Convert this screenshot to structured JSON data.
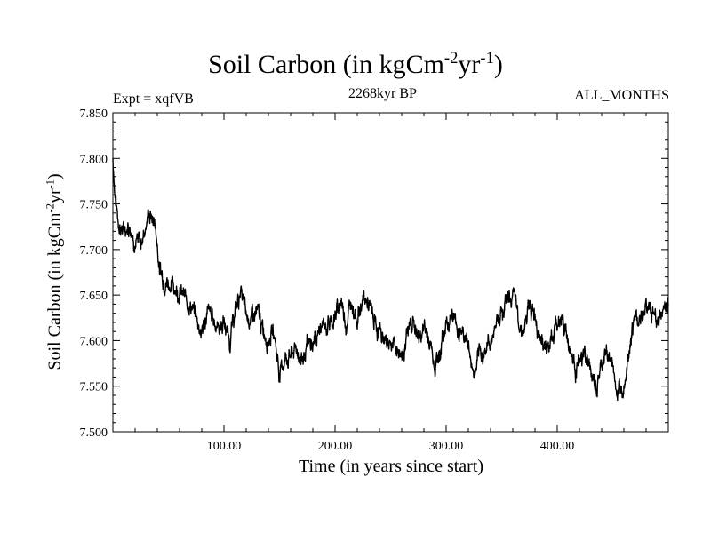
{
  "chart_data": {
    "type": "line",
    "title": "Soil Carbon (in kgCm-2yr-1)",
    "title_parts": {
      "main": "Soil Carbon (in kgCm",
      "exp1": "-2",
      "mid": "yr",
      "exp2": "-1",
      "end": ")"
    },
    "subtitle_left": "Expt = xqfVB",
    "subtitle_center": "2268kyr BP",
    "subtitle_right": "ALL_MONTHS",
    "xlabel": "Time (in years since start)",
    "ylabel": "Soil Carbon (in kgCm-2yr-1)",
    "xlim": [
      0,
      500
    ],
    "ylim": [
      7.5,
      7.85
    ],
    "xticks": [
      100,
      200,
      300,
      400
    ],
    "xtick_labels": [
      "100.00",
      "200.00",
      "300.00",
      "400.00"
    ],
    "yticks": [
      7.5,
      7.55,
      7.6,
      7.65,
      7.7,
      7.75,
      7.8,
      7.85
    ],
    "ytick_labels": [
      "7.500",
      "7.550",
      "7.600",
      "7.650",
      "7.700",
      "7.750",
      "7.800",
      "7.850"
    ],
    "grid": false,
    "series": [
      {
        "name": "Soil Carbon",
        "color": "#000000",
        "x": [
          0,
          2,
          5,
          10,
          15,
          20,
          25,
          28,
          32,
          35,
          38,
          42,
          45,
          50,
          55,
          60,
          65,
          70,
          75,
          80,
          85,
          90,
          95,
          100,
          105,
          110,
          115,
          120,
          125,
          130,
          135,
          140,
          145,
          150,
          155,
          160,
          165,
          170,
          175,
          180,
          185,
          190,
          195,
          200,
          205,
          210,
          215,
          220,
          225,
          230,
          235,
          240,
          245,
          250,
          255,
          260,
          265,
          270,
          275,
          280,
          285,
          290,
          295,
          300,
          305,
          310,
          315,
          320,
          325,
          330,
          335,
          340,
          345,
          350,
          355,
          360,
          365,
          370,
          375,
          380,
          385,
          390,
          395,
          400,
          405,
          410,
          415,
          420,
          425,
          430,
          435,
          440,
          445,
          450,
          455,
          460,
          465,
          470,
          475,
          480,
          485,
          490,
          495,
          500
        ],
        "y": [
          7.8,
          7.76,
          7.73,
          7.72,
          7.73,
          7.71,
          7.705,
          7.72,
          7.74,
          7.735,
          7.73,
          7.68,
          7.67,
          7.665,
          7.66,
          7.655,
          7.645,
          7.64,
          7.625,
          7.61,
          7.63,
          7.625,
          7.615,
          7.62,
          7.6,
          7.63,
          7.655,
          7.625,
          7.625,
          7.63,
          7.61,
          7.605,
          7.61,
          7.565,
          7.58,
          7.585,
          7.59,
          7.58,
          7.59,
          7.595,
          7.61,
          7.615,
          7.62,
          7.625,
          7.645,
          7.62,
          7.645,
          7.625,
          7.645,
          7.64,
          7.62,
          7.61,
          7.6,
          7.6,
          7.59,
          7.585,
          7.605,
          7.625,
          7.6,
          7.615,
          7.6,
          7.575,
          7.59,
          7.62,
          7.63,
          7.615,
          7.61,
          7.595,
          7.56,
          7.58,
          7.59,
          7.6,
          7.62,
          7.635,
          7.645,
          7.65,
          7.625,
          7.61,
          7.635,
          7.63,
          7.61,
          7.59,
          7.6,
          7.62,
          7.625,
          7.6,
          7.575,
          7.57,
          7.585,
          7.565,
          7.545,
          7.57,
          7.59,
          7.57,
          7.54,
          7.56,
          7.6,
          7.625,
          7.62,
          7.64,
          7.63,
          7.625,
          7.63,
          7.645
        ]
      }
    ]
  }
}
